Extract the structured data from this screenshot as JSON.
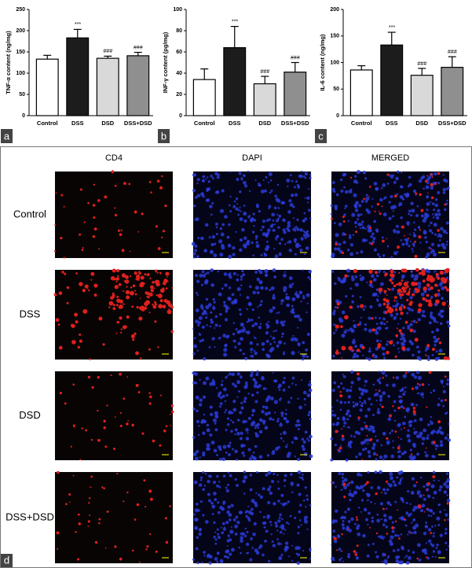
{
  "chart_data": [
    {
      "type": "bar",
      "panel": "a",
      "ylabel": "TNF-α content (ng/mg)",
      "categories": [
        "Control",
        "DSS",
        "DSD",
        "DSS+DSD"
      ],
      "values": [
        133,
        183,
        135,
        141
      ],
      "errors": [
        9,
        20,
        5,
        8
      ],
      "colors": [
        "#ffffff",
        "#1c1c1c",
        "#d9d9d9",
        "#8f8f8f"
      ],
      "annotations": [
        null,
        "***",
        "###",
        "###"
      ],
      "ylim": [
        0,
        250
      ],
      "yticks": [
        0,
        50,
        100,
        150,
        200,
        250
      ]
    },
    {
      "type": "bar",
      "panel": "b",
      "ylabel": "INF-γ content (pg/mg)",
      "categories": [
        "Control",
        "DSS",
        "DSD",
        "DSS+DSD"
      ],
      "values": [
        34,
        64,
        30,
        41
      ],
      "errors": [
        10,
        20,
        7,
        9
      ],
      "colors": [
        "#ffffff",
        "#1c1c1c",
        "#d9d9d9",
        "#8f8f8f"
      ],
      "annotations": [
        null,
        "***",
        "###",
        "###"
      ],
      "ylim": [
        0,
        100
      ],
      "yticks": [
        0,
        20,
        40,
        60,
        80,
        100
      ]
    },
    {
      "type": "bar",
      "panel": "c",
      "ylabel": "IL-6 content (ng/mg)",
      "categories": [
        "Control",
        "DSS",
        "DSD",
        "DSS+DSD"
      ],
      "values": [
        86,
        133,
        76,
        91
      ],
      "errors": [
        8,
        24,
        13,
        20
      ],
      "colors": [
        "#ffffff",
        "#1c1c1c",
        "#d9d9d9",
        "#8f8f8f"
      ],
      "annotations": [
        null,
        "***",
        "###",
        "###"
      ],
      "ylim": [
        0,
        200
      ],
      "yticks": [
        0,
        50,
        100,
        150,
        200
      ]
    }
  ],
  "panel_d": {
    "panel": "d",
    "columns": [
      "CD4",
      "DAPI",
      "MERGED"
    ],
    "rows": [
      "Control",
      "DSS",
      "DSD",
      "DSS+DSD"
    ]
  }
}
